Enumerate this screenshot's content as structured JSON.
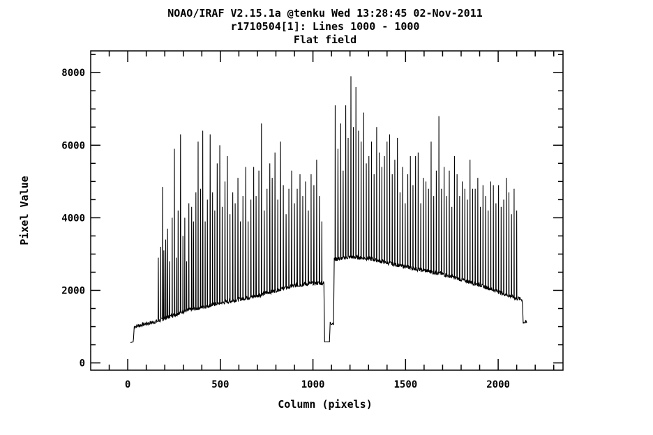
{
  "chart_data": {
    "type": "line",
    "title_lines": [
      "NOAO/IRAF V2.15.1a @tenku Wed 13:28:45 02-Nov-2011",
      "r1710504[1]: Lines 1000 - 1000",
      "Flat field"
    ],
    "xlabel": "Column (pixels)",
    "ylabel": "Pixel Value",
    "xlim": [
      -200,
      2350
    ],
    "ylim": [
      -200,
      8600
    ],
    "x_ticks": [
      0,
      500,
      1000,
      1500,
      2000
    ],
    "x_tick_labels": [
      "0",
      "500",
      "1000",
      "1500",
      "2000"
    ],
    "y_ticks": [
      0,
      2000,
      4000,
      6000,
      8000
    ],
    "y_tick_labels": [
      "0",
      "2000",
      "4000",
      "6000",
      "8000"
    ],
    "grid": false,
    "colors": {
      "line": "#000000",
      "background": "#ffffff"
    },
    "series": [
      {
        "continuum_x": [
          15,
          30,
          35,
          100,
          160,
          300,
          500,
          700,
          800,
          900,
          1000,
          1060,
          1062,
          1090,
          1092,
          1112,
          1114,
          1200,
          1300,
          1500,
          1700,
          1900,
          2100,
          2130,
          2135,
          2155
        ],
        "continuum_y": [
          560,
          580,
          1000,
          1080,
          1150,
          1420,
          1650,
          1850,
          2000,
          2130,
          2200,
          2200,
          580,
          580,
          1100,
          1100,
          2850,
          2920,
          2880,
          2650,
          2450,
          2150,
          1780,
          1750,
          1130,
          1110
        ],
        "spike_x": [
          165,
          178,
          188,
          195,
          205,
          215,
          225,
          240,
          252,
          262,
          272,
          285,
          298,
          308,
          318,
          330,
          345,
          355,
          368,
          380,
          393,
          405,
          418,
          430,
          445,
          458,
          470,
          483,
          497,
          510,
          525,
          538,
          552,
          567,
          580,
          595,
          608,
          622,
          637,
          650,
          665,
          680,
          693,
          708,
          722,
          737,
          752,
          767,
          780,
          795,
          810,
          825,
          840,
          855,
          870,
          885,
          900,
          915,
          930,
          945,
          960,
          975,
          990,
          1005,
          1020,
          1035,
          1048,
          1120,
          1135,
          1150,
          1163,
          1177,
          1190,
          1205,
          1218,
          1232,
          1246,
          1260,
          1274,
          1288,
          1302,
          1316,
          1330,
          1344,
          1358,
          1372,
          1386,
          1400,
          1414,
          1428,
          1442,
          1456,
          1470,
          1484,
          1498,
          1512,
          1526,
          1540,
          1554,
          1568,
          1582,
          1596,
          1610,
          1624,
          1638,
          1652,
          1666,
          1680,
          1694,
          1708,
          1722,
          1736,
          1750,
          1764,
          1778,
          1792,
          1806,
          1820,
          1834,
          1848,
          1862,
          1876,
          1890,
          1904,
          1918,
          1932,
          1946,
          1960,
          1974,
          1988,
          2002,
          2016,
          2030,
          2044,
          2058,
          2072,
          2086,
          2100
        ],
        "spike_y": [
          2900,
          3200,
          4850,
          3100,
          3400,
          3700,
          2800,
          4000,
          5900,
          2900,
          4200,
          6300,
          3500,
          4000,
          2800,
          4400,
          4300,
          3900,
          4700,
          6100,
          4800,
          6400,
          3900,
          4500,
          6300,
          4700,
          4200,
          5500,
          6000,
          4300,
          5000,
          5700,
          4100,
          4700,
          4400,
          5100,
          3900,
          4600,
          5400,
          3900,
          4500,
          5400,
          4600,
          5300,
          6600,
          4200,
          4800,
          5500,
          5100,
          5800,
          4500,
          6100,
          4900,
          4100,
          4800,
          5300,
          4400,
          4800,
          5200,
          4600,
          5000,
          4200,
          5200,
          4900,
          5600,
          4600,
          3900,
          7100,
          5900,
          6600,
          5300,
          7100,
          6200,
          7900,
          6500,
          7600,
          6400,
          6100,
          6900,
          5500,
          5700,
          6100,
          5200,
          6500,
          5800,
          5400,
          5700,
          6100,
          6300,
          5200,
          5600,
          6200,
          4700,
          5400,
          4400,
          5200,
          5700,
          4900,
          5700,
          5800,
          4400,
          5100,
          5000,
          4800,
          6100,
          4600,
          5300,
          6800,
          4800,
          5400,
          4600,
          5300,
          4300,
          5700,
          5200,
          4600,
          5000,
          4800,
          4500,
          5600,
          4800,
          4800,
          5100,
          4300,
          4900,
          4600,
          4200,
          5000,
          4900,
          4400,
          4900,
          4300,
          4500,
          5100,
          4700,
          4100,
          4800,
          4200
        ]
      }
    ]
  }
}
